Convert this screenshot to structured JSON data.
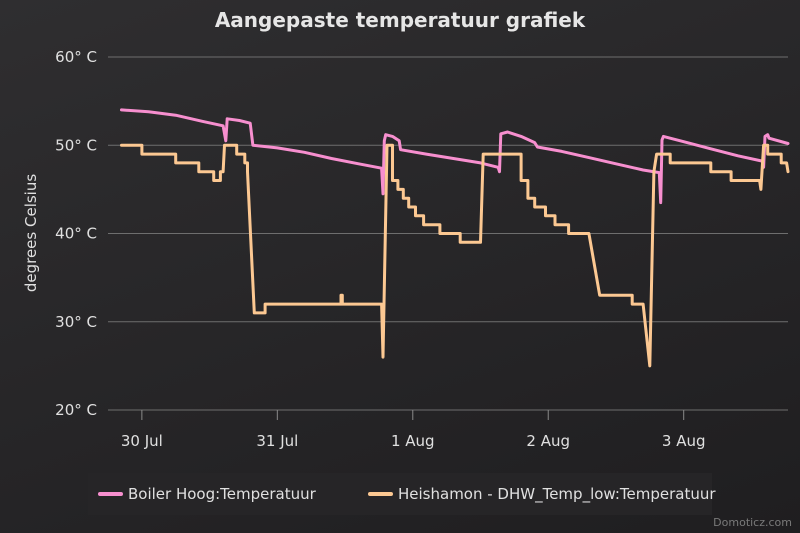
{
  "chart_data": {
    "type": "line",
    "title": "Aangepaste temperatuur grafiek",
    "ylabel": "degrees Celsius",
    "xlabel": "",
    "y_ticks": [
      "20° C",
      "30° C",
      "40° C",
      "50° C",
      "60° C"
    ],
    "ylim": [
      20,
      60
    ],
    "x_unit": "days since 30 Jul 00:00",
    "xlim": [
      -0.25,
      4.77
    ],
    "x_ticks": [
      {
        "label": "30 Jul",
        "x": 0
      },
      {
        "label": "31 Jul",
        "x": 1
      },
      {
        "label": "1 Aug",
        "x": 2
      },
      {
        "label": "2 Aug",
        "x": 3
      },
      {
        "label": "3 Aug",
        "x": 4
      }
    ],
    "grid": true,
    "legend_position": "bottom",
    "series": [
      {
        "name": "Boiler Hoog:Temperatuur",
        "color": "#f78fcf",
        "points": [
          [
            -0.15,
            54.0
          ],
          [
            0.05,
            53.8
          ],
          [
            0.25,
            53.4
          ],
          [
            0.45,
            52.7
          ],
          [
            0.6,
            52.2
          ],
          [
            0.62,
            50.5
          ],
          [
            0.63,
            53.0
          ],
          [
            0.72,
            52.8
          ],
          [
            0.8,
            52.5
          ],
          [
            0.82,
            50.0
          ],
          [
            1.0,
            49.7
          ],
          [
            1.2,
            49.2
          ],
          [
            1.4,
            48.5
          ],
          [
            1.6,
            47.9
          ],
          [
            1.77,
            47.4
          ],
          [
            1.78,
            44.5
          ],
          [
            1.79,
            50.5
          ],
          [
            1.8,
            51.2
          ],
          [
            1.85,
            51.0
          ],
          [
            1.9,
            50.5
          ],
          [
            1.91,
            49.5
          ],
          [
            2.1,
            49.0
          ],
          [
            2.3,
            48.5
          ],
          [
            2.5,
            48.0
          ],
          [
            2.63,
            47.5
          ],
          [
            2.64,
            47.0
          ],
          [
            2.65,
            51.3
          ],
          [
            2.7,
            51.5
          ],
          [
            2.8,
            51.0
          ],
          [
            2.9,
            50.3
          ],
          [
            2.92,
            49.8
          ],
          [
            3.1,
            49.3
          ],
          [
            3.3,
            48.6
          ],
          [
            3.5,
            47.9
          ],
          [
            3.7,
            47.2
          ],
          [
            3.82,
            46.9
          ],
          [
            3.83,
            43.5
          ],
          [
            3.84,
            50.6
          ],
          [
            3.85,
            51.0
          ],
          [
            4.0,
            50.4
          ],
          [
            4.2,
            49.6
          ],
          [
            4.4,
            48.8
          ],
          [
            4.58,
            48.2
          ],
          [
            4.59,
            47.5
          ],
          [
            4.6,
            51.0
          ],
          [
            4.62,
            51.2
          ],
          [
            4.63,
            50.8
          ],
          [
            4.77,
            50.2
          ]
        ]
      },
      {
        "name": "Heishamon - DHW_Temp_low:Temperatuur",
        "color": "#fcc892",
        "points": [
          [
            -0.15,
            50
          ],
          [
            0.0,
            50
          ],
          [
            0.0,
            49
          ],
          [
            0.25,
            49
          ],
          [
            0.25,
            48
          ],
          [
            0.42,
            48
          ],
          [
            0.42,
            47
          ],
          [
            0.53,
            47
          ],
          [
            0.53,
            46
          ],
          [
            0.58,
            46
          ],
          [
            0.58,
            47
          ],
          [
            0.6,
            47
          ],
          [
            0.61,
            50
          ],
          [
            0.7,
            50
          ],
          [
            0.7,
            49
          ],
          [
            0.76,
            49
          ],
          [
            0.76,
            48
          ],
          [
            0.78,
            48
          ],
          [
            0.78,
            47
          ],
          [
            0.83,
            31
          ],
          [
            0.91,
            31
          ],
          [
            0.91,
            32
          ],
          [
            1.47,
            32
          ],
          [
            1.47,
            33
          ],
          [
            1.48,
            33
          ],
          [
            1.48,
            32
          ],
          [
            1.77,
            32
          ],
          [
            1.78,
            26
          ],
          [
            1.81,
            50
          ],
          [
            1.85,
            50
          ],
          [
            1.85,
            46
          ],
          [
            1.89,
            46
          ],
          [
            1.89,
            45
          ],
          [
            1.93,
            45
          ],
          [
            1.93,
            44
          ],
          [
            1.97,
            44
          ],
          [
            1.97,
            43
          ],
          [
            2.02,
            43
          ],
          [
            2.02,
            42
          ],
          [
            2.08,
            42
          ],
          [
            2.08,
            41
          ],
          [
            2.2,
            41
          ],
          [
            2.2,
            40
          ],
          [
            2.35,
            40
          ],
          [
            2.35,
            39
          ],
          [
            2.5,
            39
          ],
          [
            2.52,
            49
          ],
          [
            2.63,
            49
          ],
          [
            2.65,
            49
          ],
          [
            2.8,
            49
          ],
          [
            2.8,
            46
          ],
          [
            2.85,
            46
          ],
          [
            2.85,
            44
          ],
          [
            2.9,
            44
          ],
          [
            2.9,
            43
          ],
          [
            2.98,
            43
          ],
          [
            2.98,
            42
          ],
          [
            3.05,
            42
          ],
          [
            3.05,
            41
          ],
          [
            3.15,
            41
          ],
          [
            3.15,
            40
          ],
          [
            3.3,
            40
          ],
          [
            3.38,
            33
          ],
          [
            3.62,
            33
          ],
          [
            3.62,
            32
          ],
          [
            3.7,
            32
          ],
          [
            3.75,
            25
          ],
          [
            3.78,
            47
          ],
          [
            3.8,
            49
          ],
          [
            3.9,
            49
          ],
          [
            3.9,
            48
          ],
          [
            4.2,
            48
          ],
          [
            4.2,
            47
          ],
          [
            4.35,
            47
          ],
          [
            4.35,
            46
          ],
          [
            4.56,
            46
          ],
          [
            4.57,
            45
          ],
          [
            4.59,
            50
          ],
          [
            4.62,
            50
          ],
          [
            4.62,
            49
          ],
          [
            4.72,
            49
          ],
          [
            4.72,
            48
          ],
          [
            4.76,
            48
          ],
          [
            4.77,
            47
          ]
        ]
      }
    ]
  },
  "credit": "Domoticz.com"
}
